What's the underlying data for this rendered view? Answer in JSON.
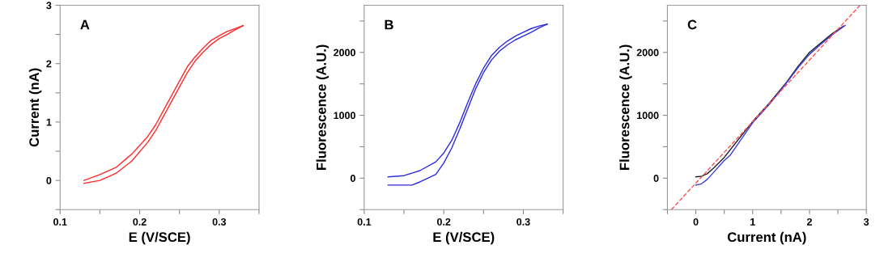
{
  "chart_data": [
    {
      "type": "line",
      "xlabel": "E (V/SCE)",
      "ylabel": "Current (nA)",
      "annotations": [
        "A"
      ],
      "xlim": [
        0.1,
        0.35
      ],
      "ylim": [
        -0.5,
        3
      ],
      "xticks": [
        0.1,
        {
          "value": 0.15,
          "label": null
        },
        0.2,
        {
          "value": 0.25,
          "label": null
        },
        0.3,
        {
          "value": 0.35,
          "label": null
        }
      ],
      "yticks": [
        {
          "value": -0.5,
          "label": null
        },
        0,
        {
          "value": 0.5,
          "label": null
        },
        1,
        {
          "value": 1.5,
          "label": null
        },
        2,
        {
          "value": 2.5,
          "label": null
        },
        3
      ],
      "grid": false,
      "legend": false,
      "series": [
        {
          "color": "#ff2a2a",
          "x": [
            0.13,
            0.15,
            0.17,
            0.19,
            0.21,
            0.22,
            0.23,
            0.24,
            0.25,
            0.26,
            0.27,
            0.28,
            0.29,
            0.3,
            0.31,
            0.32,
            0.33
          ],
          "values": [
            0.0,
            0.1,
            0.22,
            0.45,
            0.75,
            0.95,
            1.2,
            1.45,
            1.7,
            1.95,
            2.12,
            2.27,
            2.4,
            2.48,
            2.55,
            2.6,
            2.65
          ]
        },
        {
          "color": "#ff2a2a",
          "x": [
            0.13,
            0.15,
            0.17,
            0.19,
            0.21,
            0.22,
            0.23,
            0.24,
            0.25,
            0.26,
            0.27,
            0.28,
            0.29,
            0.3,
            0.31,
            0.32,
            0.33
          ],
          "values": [
            -0.05,
            0.0,
            0.12,
            0.33,
            0.65,
            0.85,
            1.1,
            1.35,
            1.6,
            1.85,
            2.05,
            2.2,
            2.33,
            2.43,
            2.5,
            2.58,
            2.65
          ]
        }
      ]
    },
    {
      "type": "line",
      "xlabel": "E (V/SCE)",
      "ylabel": "Fluorescence (A.U.)",
      "annotations": [
        "B"
      ],
      "xlim": [
        0.1,
        0.35
      ],
      "ylim": [
        -500,
        2750
      ],
      "xticks": [
        0.1,
        {
          "value": 0.15,
          "label": null
        },
        0.2,
        {
          "value": 0.25,
          "label": null
        },
        0.3,
        {
          "value": 0.35,
          "label": null
        }
      ],
      "yticks": [
        {
          "value": -500,
          "label": null
        },
        0,
        {
          "value": 500,
          "label": null
        },
        1000,
        {
          "value": 1500,
          "label": null
        },
        2000,
        {
          "value": 2500,
          "label": null
        }
      ],
      "grid": false,
      "legend": false,
      "series": [
        {
          "color": "#2a2ae0",
          "x": [
            0.13,
            0.15,
            0.17,
            0.19,
            0.2,
            0.21,
            0.22,
            0.23,
            0.24,
            0.25,
            0.26,
            0.27,
            0.28,
            0.29,
            0.3,
            0.31,
            0.32,
            0.33
          ],
          "values": [
            20,
            40,
            120,
            260,
            400,
            600,
            880,
            1200,
            1500,
            1750,
            1950,
            2080,
            2180,
            2260,
            2320,
            2380,
            2420,
            2450
          ]
        },
        {
          "color": "#2a2ae0",
          "x": [
            0.13,
            0.16,
            0.17,
            0.18,
            0.19,
            0.2,
            0.21,
            0.22,
            0.23,
            0.24,
            0.25,
            0.26,
            0.27,
            0.28,
            0.29,
            0.3,
            0.31,
            0.32,
            0.33
          ],
          "values": [
            -110,
            -110,
            -60,
            0,
            60,
            240,
            480,
            780,
            1100,
            1420,
            1680,
            1880,
            2020,
            2120,
            2200,
            2260,
            2320,
            2390,
            2450
          ]
        }
      ]
    },
    {
      "type": "line",
      "xlabel": "Current (nA)",
      "ylabel": "Fluorescence (A.U.)",
      "annotations": [
        "C"
      ],
      "xlim": [
        -0.5,
        3
      ],
      "ylim": [
        -500,
        2750
      ],
      "xticks": [
        {
          "value": -0.5,
          "label": null
        },
        0,
        {
          "value": 0.5,
          "label": null
        },
        1,
        {
          "value": 1.5,
          "label": null
        },
        2,
        {
          "value": 2.5,
          "label": null
        },
        3
      ],
      "yticks": [
        {
          "value": -500,
          "label": null
        },
        0,
        {
          "value": 500,
          "label": null
        },
        1000,
        {
          "value": 1500,
          "label": null
        },
        2000,
        {
          "value": 2500,
          "label": null
        }
      ],
      "grid": false,
      "legend": false,
      "series": [
        {
          "color": "#222222",
          "x": [
            0,
            0.1,
            0.2,
            0.3,
            0.5,
            0.7,
            1.0,
            1.3,
            1.6,
            1.8,
            2.0,
            2.2,
            2.4,
            2.6
          ],
          "values": [
            20,
            30,
            70,
            150,
            330,
            560,
            900,
            1200,
            1530,
            1780,
            2000,
            2150,
            2300,
            2420
          ]
        },
        {
          "color": "#3a3ae0",
          "x": [
            0,
            0.1,
            0.2,
            0.3,
            0.5,
            0.6,
            0.8,
            1.0,
            1.3,
            1.6,
            1.8,
            2.0,
            2.2,
            2.4,
            2.63
          ],
          "values": [
            -110,
            -90,
            -20,
            80,
            280,
            360,
            620,
            880,
            1180,
            1520,
            1760,
            1970,
            2130,
            2280,
            2430
          ]
        },
        {
          "color": "#ff5050",
          "line_style": "dashed",
          "x": [
            -0.43,
            2.89
          ],
          "values": [
            -500,
            2750
          ]
        }
      ]
    }
  ]
}
